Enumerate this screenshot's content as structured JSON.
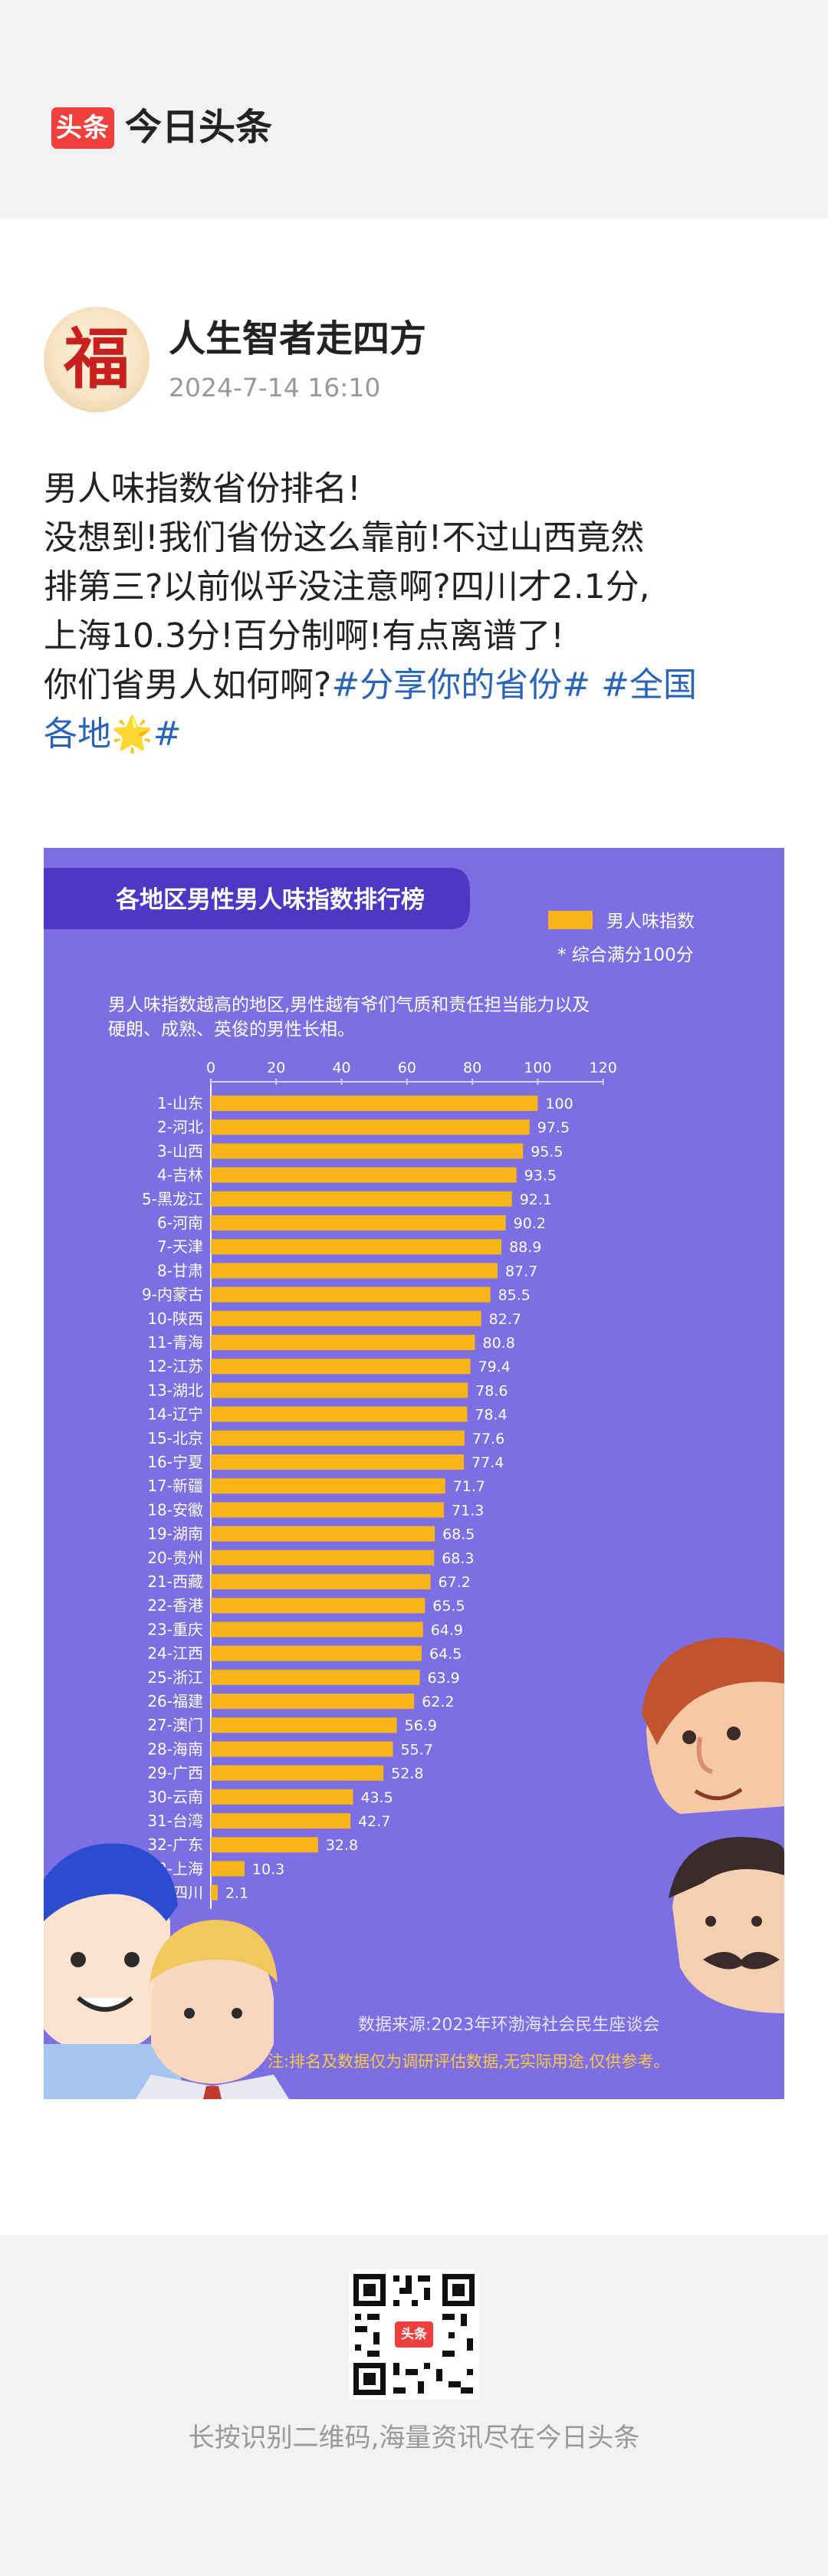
{
  "app": {
    "badge": "头条",
    "name": "今日头条"
  },
  "post": {
    "author": "人生智者走四方",
    "avatar_char": "福",
    "date": "2024-7-14 16:10",
    "lines": [
      "男人味指数省份排名!",
      "没想到!我们省份这么靠前!不过山西竟然",
      "排第三?以前似乎没注意啊?四川才2.1分,",
      "上海10.3分!百分制啊!有点离谱了!"
    ],
    "line5_text": "你们省男人如何啊?",
    "hashtag1": "#分享你的省份#",
    "hashtag2_part1": "#全国",
    "hashtag2_part2": "各地",
    "hashtag2_star": "🌟",
    "hashtag2_end": "#"
  },
  "colors": {
    "accent": "#f0403e",
    "chart_bg": "#7d6ee4",
    "bar": "#f7b517",
    "hashtag": "#2a64b8"
  },
  "chart_data": {
    "type": "bar",
    "title": "各地区男性男人味指数排行榜",
    "legend": "男人味指数",
    "note": "* 综合满分100分",
    "description_line1": "男人味指数越高的地区,男性越有爷们气质和责任担当能力以及",
    "description_line2": "硬朗、成熟、英俊的男性长相。",
    "xlim": [
      0,
      120
    ],
    "ticks": [
      0,
      20,
      40,
      60,
      80,
      100,
      120
    ],
    "categories": [
      "1-山东",
      "2-河北",
      "3-山西",
      "4-吉林",
      "5-黑龙江",
      "6-河南",
      "7-天津",
      "8-甘肃",
      "9-内蒙古",
      "10-陕西",
      "11-青海",
      "12-江苏",
      "13-湖北",
      "14-辽宁",
      "15-北京",
      "16-宁夏",
      "17-新疆",
      "18-安徽",
      "19-湖南",
      "20-贵州",
      "21-西藏",
      "22-香港",
      "23-重庆",
      "24-江西",
      "25-浙江",
      "26-福建",
      "27-澳门",
      "28-海南",
      "29-广西",
      "30-云南",
      "31-台湾",
      "32-广东",
      "33-上海",
      "34-四川"
    ],
    "values": [
      100,
      97.5,
      95.5,
      93.5,
      92.1,
      90.2,
      88.9,
      87.7,
      85.5,
      82.7,
      80.8,
      79.4,
      78.6,
      78.4,
      77.6,
      77.4,
      71.7,
      71.3,
      68.5,
      68.3,
      67.2,
      65.5,
      64.9,
      64.5,
      63.9,
      62.2,
      56.9,
      55.7,
      52.8,
      43.5,
      42.7,
      32.8,
      10.3,
      2.1
    ],
    "source": "数据来源:2023年环渤海社会民生座谈会",
    "disclaimer": "注:排名及数据仅为调研评估数据,无实际用途,仅供参考。"
  },
  "footer": {
    "text": "长按识别二维码,海量资讯尽在今日头条",
    "qr_badge": "头条"
  }
}
